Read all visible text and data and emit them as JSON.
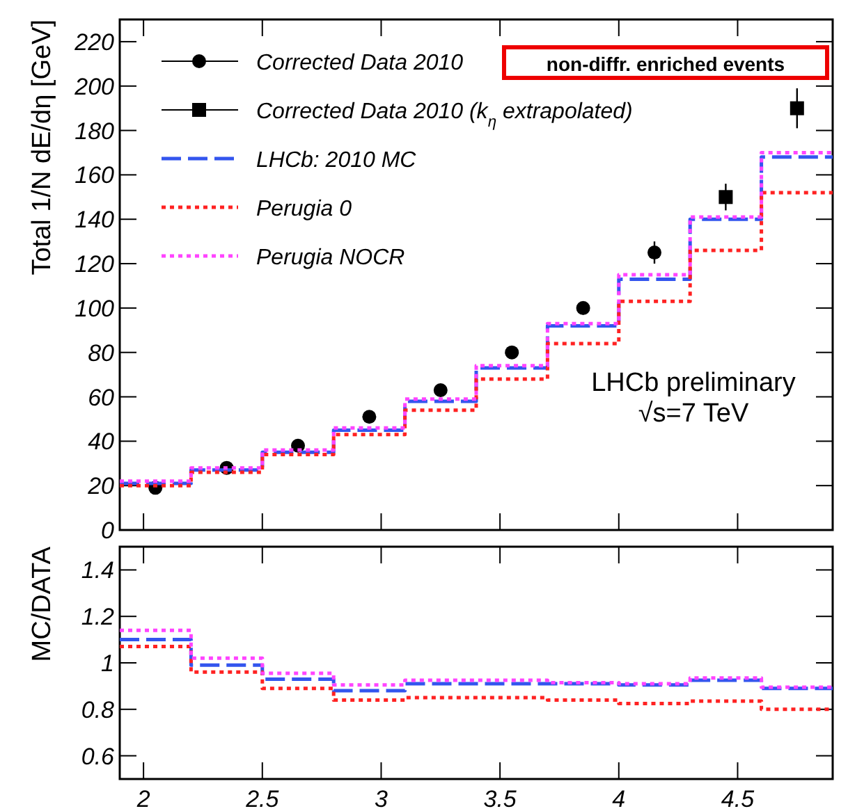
{
  "chart_data": [
    {
      "type": "histogram",
      "ylabel": "Total 1/N dE/dη [GeV]",
      "bins": [
        1.9,
        2.2,
        2.5,
        2.8,
        3.1,
        3.4,
        3.7,
        4.0,
        4.3,
        4.6,
        4.9
      ],
      "xlim": [
        1.9,
        4.9
      ],
      "xticks": [
        2,
        2.5,
        3,
        3.5,
        4,
        4.5
      ],
      "ylim": [
        0,
        230
      ],
      "yticks": [
        0,
        20,
        40,
        60,
        80,
        100,
        120,
        140,
        160,
        180,
        200,
        220
      ],
      "tick_labels": "y",
      "legend": "top left",
      "grid": false,
      "annotations": [
        "non-diffr. enriched events",
        "LHCb preliminary",
        "√s=7 TeV"
      ],
      "series": [
        {
          "name": "Corrected Data 2010",
          "type": "scatter",
          "marker": "circle",
          "color": "#000000",
          "x": [
            2.05,
            2.35,
            2.65,
            2.95,
            3.25,
            3.55,
            3.85,
            4.15
          ],
          "values": [
            19,
            28,
            38,
            51,
            63,
            80,
            100,
            125
          ],
          "errors": [
            1,
            1,
            1.5,
            1.5,
            2,
            2,
            3,
            5
          ]
        },
        {
          "name": "Corrected Data 2010 (k$_{η}$ extrapolated)",
          "type": "scatter",
          "marker": "square",
          "color": "#000000",
          "x": [
            4.45,
            4.75
          ],
          "values": [
            150,
            190
          ],
          "errors": [
            6,
            9
          ]
        },
        {
          "name": "LHCb: 2010 MC",
          "type": "histogram",
          "line_style": "dashed",
          "color": "#3355ee",
          "values": [
            21,
            27,
            35,
            45,
            58,
            73,
            92,
            113,
            140,
            168
          ]
        },
        {
          "name": "Perugia 0",
          "type": "histogram",
          "line_style": "dotted",
          "color": "#ff2222",
          "values": [
            20,
            26,
            34,
            43,
            54,
            68,
            84,
            103,
            126,
            152
          ]
        },
        {
          "name": "Perugia NOCR",
          "type": "histogram",
          "line_style": "dotted",
          "color": "#ff44ff",
          "values": [
            22,
            28,
            36,
            46,
            59,
            74,
            93,
            115,
            141,
            170
          ]
        }
      ]
    },
    {
      "type": "histogram",
      "ylabel": "MC/DATA",
      "bins": [
        1.9,
        2.2,
        2.5,
        2.8,
        3.1,
        3.4,
        3.7,
        4.0,
        4.3,
        4.6,
        4.9
      ],
      "xlim": [
        1.9,
        4.9
      ],
      "xticks": [
        2,
        2.5,
        3,
        3.5,
        4,
        4.5
      ],
      "ylim": [
        0.5,
        1.5
      ],
      "yticks": [
        0.6,
        0.8,
        1,
        1.2,
        1.4
      ],
      "grid": false,
      "series": [
        {
          "type": "histogram",
          "line_style": "dashed",
          "color": "#3355ee",
          "values": [
            1.1,
            0.99,
            0.93,
            0.88,
            0.91,
            0.91,
            0.91,
            0.905,
            0.925,
            0.89
          ]
        },
        {
          "type": "histogram",
          "line_style": "dotted",
          "color": "#ff2222",
          "values": [
            1.07,
            0.96,
            0.89,
            0.84,
            0.85,
            0.85,
            0.84,
            0.825,
            0.835,
            0.8
          ]
        },
        {
          "type": "histogram",
          "line_style": "dotted",
          "color": "#ff44ff",
          "values": [
            1.14,
            1.02,
            0.955,
            0.905,
            0.925,
            0.925,
            0.915,
            0.91,
            0.935,
            0.895
          ]
        }
      ]
    }
  ]
}
